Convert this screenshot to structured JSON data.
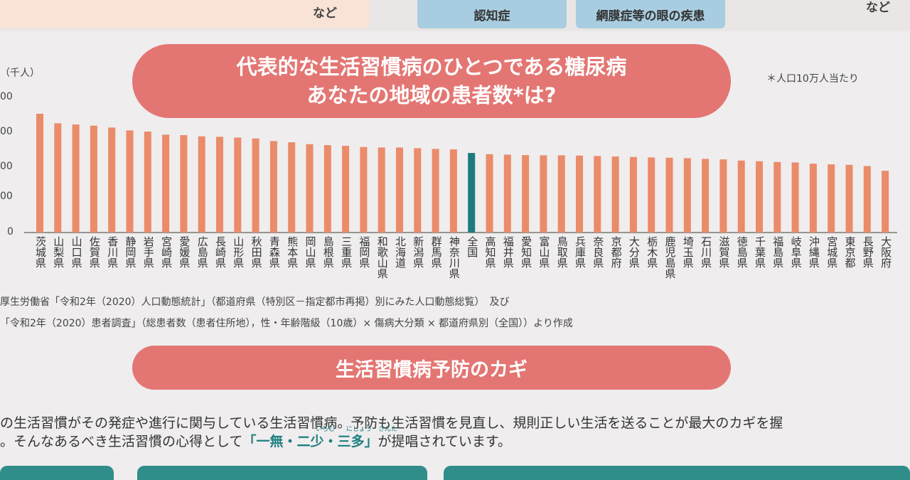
{
  "header": {
    "left_text": "など",
    "pill1": "認知症",
    "pill2": "網膜症等の眼の疾患",
    "right_text": "など"
  },
  "title": {
    "line1": "代表的な生活習慣病のひとつである糖尿病",
    "line2": "あなたの地域の患者数*は?"
  },
  "note": "＊人口10万人当たり",
  "y_unit": "（千人）",
  "y_ticks": [
    "00",
    "00",
    "00",
    "00",
    "00",
    "0"
  ],
  "colors": {
    "bar": "#ea8b6a",
    "highlight_bar": "#1d7b80",
    "banner": "#e37673"
  },
  "chart_data": {
    "type": "bar",
    "categories": [
      "茨城県",
      "山梨県",
      "山口県",
      "佐賀県",
      "香川県",
      "静岡県",
      "岩手県",
      "宮崎県",
      "愛媛県",
      "広島県",
      "長崎県",
      "山形県",
      "秋田県",
      "青森県",
      "熊本県",
      "岡山県",
      "島根県",
      "三重県",
      "福岡県",
      "和歌山県",
      "北海道",
      "新潟県",
      "群馬県",
      "神奈川県",
      "全国",
      "高知県",
      "福井県",
      "愛知県",
      "富山県",
      "鳥取県",
      "兵庫県",
      "奈良県",
      "京都府",
      "大分県",
      "栃木県",
      "鹿児島県",
      "埼玉県",
      "石川県",
      "滋賀県",
      "徳島県",
      "千葉県",
      "福島県",
      "岐阜県",
      "沖縄県",
      "宮城県",
      "東京都",
      "長野県",
      "大阪府"
    ],
    "values": [
      5.0,
      4.6,
      4.55,
      4.5,
      4.42,
      4.3,
      4.25,
      4.12,
      4.1,
      4.05,
      4.03,
      4.0,
      3.96,
      3.85,
      3.8,
      3.72,
      3.68,
      3.65,
      3.6,
      3.58,
      3.58,
      3.55,
      3.52,
      3.5,
      3.35,
      3.3,
      3.28,
      3.26,
      3.25,
      3.25,
      3.24,
      3.22,
      3.2,
      3.18,
      3.16,
      3.15,
      3.13,
      3.1,
      3.08,
      3.03,
      3.0,
      2.97,
      2.95,
      2.9,
      2.87,
      2.85,
      2.8,
      2.6
    ],
    "highlight": "全国",
    "ylim": [
      0,
      5.5
    ]
  },
  "source": {
    "line1": "厚生労働省「令和2年（2020）人口動態統計」（都道府県（特別区－指定都市再掲）別にみた人口動態総覧）　及び",
    "line2": "「令和2年（2020）患者調査」（総患者数（患者住所地），性・年齢階級（10歳）× 傷病大分類 × 都道府県別（全国））より作成"
  },
  "subtitle": "生活習慣病予防のカギ",
  "body": {
    "line1": "の生活習慣がその発症や進行に関与している生活習慣病。予防も生活習慣を見直し、規則正しい生活を送ることが最大のカギを握",
    "line2_pre": "。そんなあるべき生活習慣の心得として",
    "line2_hl": "「一無・二少・三多」",
    "line2_post": "が提唱されています。",
    "ruby1": "いちむ",
    "ruby2": "にしょう",
    "ruby3": "さんた"
  }
}
